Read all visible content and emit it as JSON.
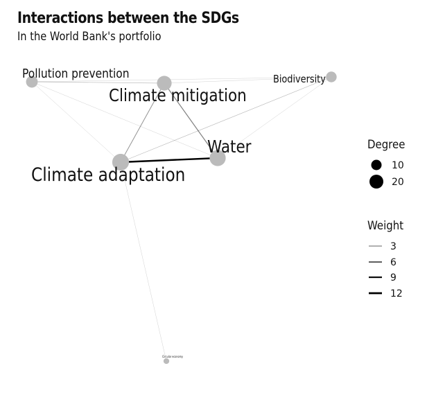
{
  "header": {
    "title": "Interactions between the SDGs",
    "subtitle": "In the World Bank's portfolio"
  },
  "network": {
    "nodes": [
      {
        "id": "pollution",
        "label": "Pollution prevention",
        "degree": 9
      },
      {
        "id": "mitigation",
        "label": "Climate mitigation",
        "degree": 16
      },
      {
        "id": "biodiversity",
        "label": "Biodiversity",
        "degree": 7
      },
      {
        "id": "water",
        "label": "Water",
        "degree": 20
      },
      {
        "id": "adaptation",
        "label": "Climate adaptation",
        "degree": 22
      },
      {
        "id": "circular",
        "label": "Circular economy",
        "degree": 1
      }
    ],
    "edges": [
      {
        "source": "pollution",
        "target": "mitigation",
        "weight": 2
      },
      {
        "source": "pollution",
        "target": "biodiversity",
        "weight": 1
      },
      {
        "source": "pollution",
        "target": "adaptation",
        "weight": 1
      },
      {
        "source": "pollution",
        "target": "water",
        "weight": 1
      },
      {
        "source": "mitigation",
        "target": "adaptation",
        "weight": 4
      },
      {
        "source": "mitigation",
        "target": "water",
        "weight": 5
      },
      {
        "source": "mitigation",
        "target": "biodiversity",
        "weight": 1
      },
      {
        "source": "adaptation",
        "target": "water",
        "weight": 12
      },
      {
        "source": "adaptation",
        "target": "biodiversity",
        "weight": 2
      },
      {
        "source": "water",
        "target": "biodiversity",
        "weight": 1
      },
      {
        "source": "adaptation",
        "target": "circular",
        "weight": 1
      }
    ],
    "node_color": "#bbbbbb",
    "edge_color": "#000000"
  },
  "legend": {
    "degree": {
      "title": "Degree",
      "items": [
        {
          "label": "10",
          "value": 10
        },
        {
          "label": "20",
          "value": 20
        }
      ]
    },
    "weight": {
      "title": "Weight",
      "items": [
        {
          "label": "3",
          "value": 3
        },
        {
          "label": "6",
          "value": 6
        },
        {
          "label": "9",
          "value": 9
        },
        {
          "label": "12",
          "value": 12
        }
      ]
    }
  }
}
